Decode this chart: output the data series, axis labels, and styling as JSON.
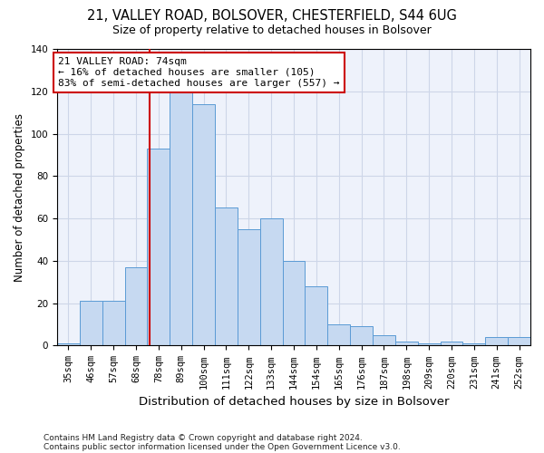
{
  "title1": "21, VALLEY ROAD, BOLSOVER, CHESTERFIELD, S44 6UG",
  "title2": "Size of property relative to detached houses in Bolsover",
  "xlabel": "Distribution of detached houses by size in Bolsover",
  "ylabel": "Number of detached properties",
  "categories": [
    "35sqm",
    "46sqm",
    "57sqm",
    "68sqm",
    "78sqm",
    "89sqm",
    "100sqm",
    "111sqm",
    "122sqm",
    "133sqm",
    "144sqm",
    "154sqm",
    "165sqm",
    "176sqm",
    "187sqm",
    "198sqm",
    "209sqm",
    "220sqm",
    "231sqm",
    "241sqm",
    "252sqm"
  ],
  "values": [
    1,
    21,
    21,
    37,
    93,
    127,
    114,
    65,
    55,
    60,
    40,
    28,
    10,
    9,
    5,
    2,
    1,
    2,
    1,
    4,
    4
  ],
  "bar_color": "#c6d9f1",
  "bar_edge_color": "#5b9bd5",
  "vline_x": 3.62,
  "vline_color": "#cc0000",
  "annotation_text_line1": "21 VALLEY ROAD: 74sqm",
  "annotation_text_line2": "← 16% of detached houses are smaller (105)",
  "annotation_text_line3": "83% of semi-detached houses are larger (557) →",
  "footer1": "Contains HM Land Registry data © Crown copyright and database right 2024.",
  "footer2": "Contains public sector information licensed under the Open Government Licence v3.0.",
  "ylim": [
    0,
    140
  ],
  "yticks": [
    0,
    20,
    40,
    60,
    80,
    100,
    120,
    140
  ],
  "grid_color": "#cdd6e8",
  "background_color": "#eef2fb",
  "title1_fontsize": 10.5,
  "title2_fontsize": 9,
  "ylabel_fontsize": 8.5,
  "xlabel_fontsize": 9.5,
  "tick_fontsize": 7.5,
  "ann_fontsize": 8,
  "footer_fontsize": 6.5
}
